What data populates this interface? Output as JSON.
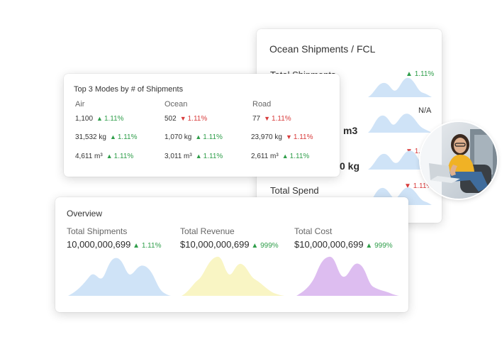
{
  "colors": {
    "up": "#2f9e4a",
    "down": "#d83b3b",
    "blue": "#cfe3f7",
    "yellow": "#f9f5c4",
    "purple": "#ddbdf0"
  },
  "ocean": {
    "title": "Ocean Shipments / FCL",
    "row1_label": "Total Shipments",
    "row1_delta": "1.11%",
    "row2_delta": "N/A",
    "row2_value": "m3",
    "row3_delta": "1.11%",
    "row3_value": "0 kg",
    "row4_label": "Total Spend",
    "row4_delta": "1.11%"
  },
  "top3": {
    "title": "Top 3 Modes by # of Shipments",
    "columns": [
      {
        "header": "Air",
        "rows": [
          {
            "value": "1,100",
            "delta": "1.11%",
            "dir": "up"
          },
          {
            "value": "31,532 kg",
            "delta": "1.11%",
            "dir": "up"
          },
          {
            "value": "4,611 m³",
            "delta": "1.11%",
            "dir": "up"
          }
        ]
      },
      {
        "header": "Ocean",
        "rows": [
          {
            "value": "502",
            "delta": "1.11%",
            "dir": "down"
          },
          {
            "value": "1,070 kg",
            "delta": "1.11%",
            "dir": "up"
          },
          {
            "value": "3,011 m³",
            "delta": "1.11%",
            "dir": "up"
          }
        ]
      },
      {
        "header": "Road",
        "rows": [
          {
            "value": "77",
            "delta": "1.11%",
            "dir": "down"
          },
          {
            "value": "23,970 kg",
            "delta": "1.11%",
            "dir": "down"
          },
          {
            "value": "2,611 m³",
            "delta": "1.11%",
            "dir": "up"
          }
        ]
      }
    ]
  },
  "overview": {
    "title": "Overview",
    "metrics": [
      {
        "label": "Total Shipments",
        "value": "10,000,000,699",
        "delta": "1.11%",
        "color": "#cfe3f7"
      },
      {
        "label": "Total Revenue",
        "value": "$10,000,000,699",
        "delta": "999%",
        "color": "#f9f5c4"
      },
      {
        "label": "Total Cost",
        "value": "$10,000,000,699",
        "delta": "999%",
        "color": "#ddbdf0"
      }
    ]
  },
  "avatar": {
    "icon": "person-with-laptop-photo"
  }
}
